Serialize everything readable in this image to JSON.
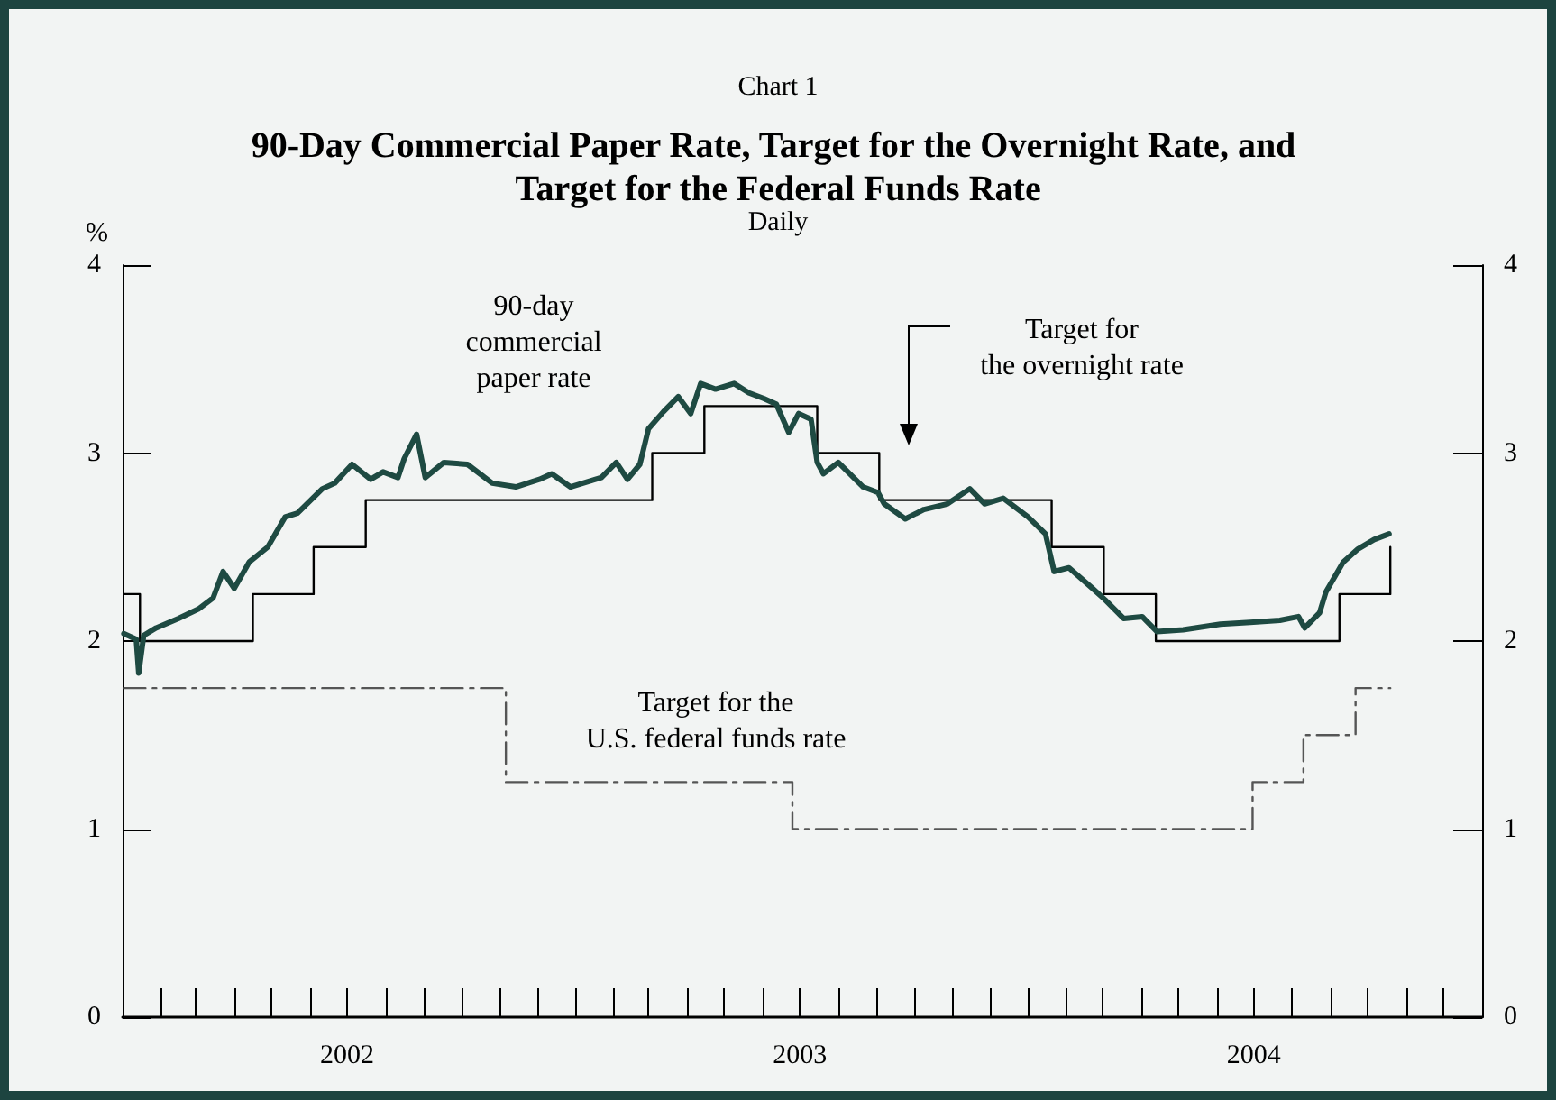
{
  "chart_data": {
    "type": "line",
    "title": "90-Day Commercial Paper Rate, Target for the Overnight Rate, and Target for the Federal Funds Rate",
    "subtitle": "Daily",
    "ylabel": "%",
    "annotations": [
      "Chart 1"
    ],
    "xlim": [
      "2002-01-01",
      "2005-01-01"
    ],
    "xticks": [
      {
        "value": "2002-02-01",
        "label": null
      },
      {
        "value": "2002-03-01",
        "label": null
      },
      {
        "value": "2002-04-01",
        "label": null
      },
      {
        "value": "2002-05-01",
        "label": null
      },
      {
        "value": "2002-06-01",
        "label": null
      },
      {
        "value": "2002-07-01",
        "label": "2002"
      },
      {
        "value": "2002-08-01",
        "label": null
      },
      {
        "value": "2002-09-01",
        "label": null
      },
      {
        "value": "2002-10-01",
        "label": null
      },
      {
        "value": "2002-11-01",
        "label": null
      },
      {
        "value": "2002-12-01",
        "label": null
      },
      {
        "value": "2003-01-01",
        "label": null
      },
      {
        "value": "2003-02-01",
        "label": null
      },
      {
        "value": "2003-03-01",
        "label": null
      },
      {
        "value": "2003-04-01",
        "label": null
      },
      {
        "value": "2003-05-01",
        "label": null
      },
      {
        "value": "2003-06-01",
        "label": null
      },
      {
        "value": "2003-07-01",
        "label": "2003"
      },
      {
        "value": "2003-08-01",
        "label": null
      },
      {
        "value": "2003-09-01",
        "label": null
      },
      {
        "value": "2003-10-01",
        "label": null
      },
      {
        "value": "2003-11-01",
        "label": null
      },
      {
        "value": "2003-12-01",
        "label": null
      },
      {
        "value": "2004-01-01",
        "label": null
      },
      {
        "value": "2004-02-01",
        "label": null
      },
      {
        "value": "2004-03-01",
        "label": null
      },
      {
        "value": "2004-04-01",
        "label": null
      },
      {
        "value": "2004-05-01",
        "label": null
      },
      {
        "value": "2004-06-01",
        "label": null
      },
      {
        "value": "2004-07-01",
        "label": "2004"
      },
      {
        "value": "2004-08-01",
        "label": null
      },
      {
        "value": "2004-09-01",
        "label": null
      },
      {
        "value": "2004-10-01",
        "label": null
      },
      {
        "value": "2004-11-01",
        "label": null
      },
      {
        "value": "2004-12-01",
        "label": null
      }
    ],
    "ylim": [
      0,
      4
    ],
    "yticks": [
      0,
      1,
      2,
      3,
      4
    ],
    "y2lim": [
      0,
      4
    ],
    "y2ticks": [
      0,
      1,
      2,
      3,
      4
    ],
    "grid": false,
    "legend": false,
    "marker": "none",
    "series": [
      {
        "name": "90-day\ncommercial\npaper rate",
        "type": "line",
        "color": "#1e4a42",
        "line_style": "solid",
        "x": [
          "2002-01-02",
          "2002-01-12",
          "2002-01-14",
          "2002-01-18",
          "2002-01-28",
          "2002-02-15",
          "2002-03-03",
          "2002-03-15",
          "2002-03-23",
          "2002-04-01",
          "2002-04-13",
          "2002-04-28",
          "2002-05-12",
          "2002-05-22",
          "2002-06-11",
          "2002-06-21",
          "2002-07-05",
          "2002-07-20",
          "2002-07-30",
          "2002-08-11",
          "2002-08-16",
          "2002-08-26",
          "2002-09-02",
          "2002-09-17",
          "2002-10-06",
          "2002-10-26",
          "2002-11-14",
          "2002-12-03",
          "2002-12-13",
          "2002-12-28",
          "2003-01-22",
          "2003-02-03",
          "2003-02-12",
          "2003-02-22",
          "2003-03-01",
          "2003-03-13",
          "2003-03-25",
          "2003-04-04",
          "2003-04-12",
          "2003-04-24",
          "2003-05-09",
          "2003-05-21",
          "2003-06-02",
          "2003-06-12",
          "2003-06-22",
          "2003-06-30",
          "2003-07-10",
          "2003-07-15",
          "2003-07-20",
          "2003-08-01",
          "2003-08-21",
          "2003-09-02",
          "2003-09-07",
          "2003-09-24",
          "2003-10-09",
          "2003-10-28",
          "2003-11-15",
          "2003-11-27",
          "2003-12-12",
          "2004-01-01",
          "2004-01-15",
          "2004-01-22",
          "2004-02-03",
          "2004-02-22",
          "2004-03-03",
          "2004-03-18",
          "2004-04-02",
          "2004-04-14",
          "2004-05-05",
          "2004-06-04",
          "2004-06-28",
          "2004-07-22",
          "2004-08-06",
          "2004-08-11",
          "2004-08-23",
          "2004-08-28",
          "2004-09-11",
          "2004-09-23",
          "2004-10-06",
          "2004-10-18"
        ],
        "values": [
          2.04,
          2.01,
          1.83,
          2.03,
          2.07,
          2.12,
          2.17,
          2.23,
          2.37,
          2.28,
          2.42,
          2.5,
          2.66,
          2.68,
          2.81,
          2.84,
          2.94,
          2.86,
          2.9,
          2.87,
          2.97,
          3.1,
          2.87,
          2.95,
          2.94,
          2.84,
          2.82,
          2.86,
          2.89,
          2.82,
          2.87,
          2.95,
          2.86,
          2.94,
          3.13,
          3.22,
          3.3,
          3.21,
          3.37,
          3.34,
          3.37,
          3.32,
          3.29,
          3.26,
          3.11,
          3.21,
          3.18,
          2.95,
          2.89,
          2.95,
          2.82,
          2.79,
          2.73,
          2.65,
          2.7,
          2.73,
          2.81,
          2.73,
          2.76,
          2.66,
          2.57,
          2.37,
          2.39,
          2.28,
          2.22,
          2.12,
          2.13,
          2.05,
          2.06,
          2.09,
          2.1,
          2.11,
          2.13,
          2.07,
          2.15,
          2.26,
          2.42,
          2.49,
          2.54,
          2.57
        ]
      },
      {
        "name": "Target for\nthe overnight rate",
        "type": "step",
        "color": "#000000",
        "line_style": "solid",
        "x": [
          "2002-01-02",
          "2002-01-15",
          "2002-04-16",
          "2002-06-04",
          "2002-07-16",
          "2003-03-04",
          "2003-04-15",
          "2003-07-15",
          "2003-09-03",
          "2004-01-20",
          "2004-03-02",
          "2004-04-13",
          "2004-09-08",
          "2004-10-19"
        ],
        "values": [
          2.25,
          2.0,
          2.25,
          2.5,
          2.75,
          3.0,
          3.25,
          3.0,
          2.75,
          2.5,
          2.25,
          2.0,
          2.25,
          2.5
        ]
      },
      {
        "name": "Target for the\nU.S. federal funds rate",
        "type": "step",
        "color": "#555555",
        "line_style": "dashed",
        "x": [
          "2002-01-02",
          "2002-11-06",
          "2003-06-25",
          "2004-06-30",
          "2004-08-10",
          "2004-09-21",
          "2004-10-19"
        ],
        "values": [
          1.75,
          1.25,
          1.0,
          1.25,
          1.5,
          1.75,
          1.75
        ]
      }
    ]
  }
}
